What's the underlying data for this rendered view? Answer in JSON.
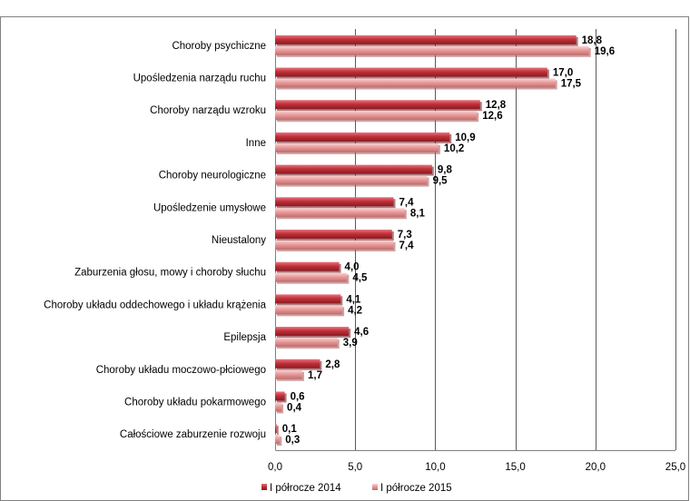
{
  "chart_data": {
    "type": "bar",
    "orientation": "horizontal",
    "categories": [
      "Choroby psychiczne",
      "Upośledzenia narządu ruchu",
      "Choroby narządu wzroku",
      "Inne",
      "Choroby neurologiczne",
      "Upośledzenie umysłowe",
      "Nieustalony",
      "Zaburzenia głosu, mowy i choroby słuchu",
      "Choroby układu oddechowego i układu krążenia",
      "Epilepsja",
      "Choroby układu moczowo-płciowego",
      "Choroby układu pokarmowego",
      "Całościowe zaburzenie rozwoju"
    ],
    "series": [
      {
        "name": "I półrocze 2014",
        "values": [
          18.8,
          17.0,
          12.8,
          10.9,
          9.8,
          7.4,
          7.3,
          4.0,
          4.1,
          4.6,
          2.8,
          0.6,
          0.1
        ],
        "labels": [
          "18,8",
          "17,0",
          "12,8",
          "10,9",
          "9,8",
          "7,4",
          "7,3",
          "4,0",
          "4,1",
          "4,6",
          "2,8",
          "0,6",
          "0,1"
        ],
        "color": "#c0303a"
      },
      {
        "name": "I półrocze 2015",
        "values": [
          19.6,
          17.5,
          12.6,
          10.2,
          9.5,
          8.1,
          7.4,
          4.5,
          4.2,
          3.9,
          1.7,
          0.4,
          0.3
        ],
        "labels": [
          "19,6",
          "17,5",
          "12,6",
          "10,2",
          "9,5",
          "8,1",
          "7,4",
          "4,5",
          "4,2",
          "3,9",
          "1,7",
          "0,4",
          "0,3"
        ],
        "color": "#e79a9a"
      }
    ],
    "xlim": [
      0,
      25
    ],
    "xticks": [
      0,
      5,
      10,
      15,
      20,
      25
    ],
    "xtick_labels": [
      "0,0",
      "5,0",
      "10,0",
      "15,0",
      "20,0",
      "25,0"
    ],
    "grid": true,
    "legend": "bottom"
  }
}
